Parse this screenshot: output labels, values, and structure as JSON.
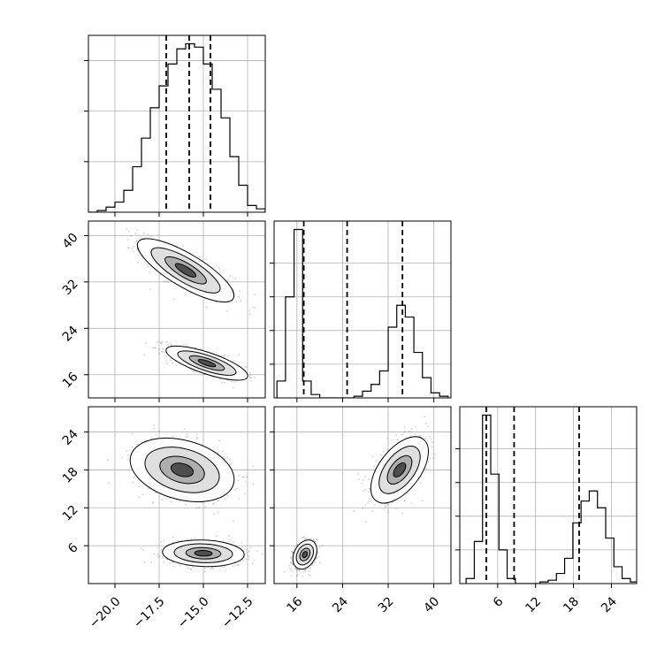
{
  "colors": {
    "background": "#ffffff",
    "frame": "#000000",
    "grid": "#b0b0b0",
    "contour": "#000000",
    "scatter": "#000000"
  },
  "chart_data": {
    "type": "corner",
    "title": "",
    "grid": true,
    "legend": "none",
    "parameters": [
      "",
      "",
      ""
    ],
    "panels": [
      {
        "id": "hist-p1",
        "type": "histogram",
        "row": 0,
        "col": 0,
        "xlim": [
          -21.5,
          -11.5
        ],
        "ylim": [
          0,
          1.05
        ],
        "xticks": [
          -20.0,
          -17.5,
          -15.0,
          -12.5
        ],
        "yticks": [
          0.3,
          0.6,
          0.9
        ],
        "bin_start": -21.5,
        "bin_width": 0.5,
        "counts": [
          0,
          0.01,
          0.03,
          0.06,
          0.13,
          0.27,
          0.44,
          0.62,
          0.75,
          0.88,
          0.97,
          1.0,
          0.98,
          0.88,
          0.73,
          0.56,
          0.33,
          0.16,
          0.04,
          0.02,
          0
        ],
        "quantiles": [
          -17.1,
          -15.8,
          -14.6
        ]
      },
      {
        "id": "scatter-p1-p2",
        "type": "2d-density",
        "row": 1,
        "col": 0,
        "xlim": [
          -21.5,
          -11.5
        ],
        "ylim": [
          12,
          42.5
        ],
        "xticks": [
          -20.0,
          -17.5,
          -15.0,
          -12.5
        ],
        "yticks": [
          16,
          24,
          32,
          40
        ],
        "ytick_labels": [
          "16",
          "24",
          "32",
          "40"
        ],
        "clusters": [
          {
            "center": [
              -16.0,
              34.0
            ],
            "spread": [
              1.3,
              2.6
            ],
            "correlation": -0.8,
            "weight": 0.5
          },
          {
            "center": [
              -14.8,
              18.0
            ],
            "spread": [
              1.1,
              1.4
            ],
            "correlation": -0.75,
            "weight": 0.5
          }
        ]
      },
      {
        "id": "hist-p2",
        "type": "histogram",
        "row": 1,
        "col": 1,
        "xlim": [
          12,
          43
        ],
        "ylim": [
          0,
          1.05
        ],
        "xticks": [
          16,
          24,
          32,
          40
        ],
        "yticks": [
          0.2,
          0.4,
          0.6,
          0.8
        ],
        "bin_start": 12.5,
        "bin_width": 1.5,
        "counts": [
          0.1,
          0.6,
          1.0,
          0.1,
          0.02,
          0,
          0,
          0,
          0,
          0.01,
          0.04,
          0.08,
          0.16,
          0.42,
          0.55,
          0.48,
          0.27,
          0.12,
          0.03,
          0.01
        ],
        "quantiles": [
          17.2,
          24.8,
          34.5
        ]
      },
      {
        "id": "scatter-p1-p3",
        "type": "2d-density",
        "row": 2,
        "col": 0,
        "xlim": [
          -21.5,
          -11.5
        ],
        "ylim": [
          0,
          28
        ],
        "xticks": [
          -20.0,
          -17.5,
          -15.0,
          -12.5
        ],
        "xtick_labels": [
          "−20.0",
          "−17.5",
          "−15.0",
          "−12.5"
        ],
        "yticks": [
          6,
          12,
          18,
          24
        ],
        "ytick_labels": [
          "6",
          "12",
          "18",
          "24"
        ],
        "clusters": [
          {
            "center": [
              -16.2,
              18.0
            ],
            "spread": [
              1.4,
              2.4
            ],
            "correlation": -0.3,
            "weight": 0.5
          },
          {
            "center": [
              -15.0,
              4.8
            ],
            "spread": [
              1.1,
              1.0
            ],
            "correlation": -0.1,
            "weight": 0.5
          }
        ]
      },
      {
        "id": "scatter-p2-p3",
        "type": "2d-density",
        "row": 2,
        "col": 1,
        "xlim": [
          12,
          43
        ],
        "ylim": [
          0,
          28
        ],
        "xticks": [
          16,
          24,
          32,
          40
        ],
        "xtick_labels": [
          "16",
          "24",
          "32",
          "40"
        ],
        "yticks": [
          6,
          12,
          18,
          24
        ],
        "clusters": [
          {
            "center": [
              34.0,
              18.0
            ],
            "spread": [
              2.4,
              2.5
            ],
            "correlation": 0.55,
            "weight": 0.5
          },
          {
            "center": [
              17.4,
              4.6
            ],
            "spread": [
              1.0,
              1.1
            ],
            "correlation": 0.3,
            "weight": 0.5
          }
        ]
      },
      {
        "id": "hist-p3",
        "type": "histogram",
        "row": 2,
        "col": 2,
        "xlim": [
          0,
          28
        ],
        "ylim": [
          0,
          1.05
        ],
        "xticks": [
          6,
          12,
          18,
          24
        ],
        "xtick_labels": [
          "6",
          "12",
          "18",
          "24"
        ],
        "yticks": [
          0.2,
          0.4,
          0.6,
          0.8
        ],
        "bin_start": 1.0,
        "bin_width": 1.3,
        "counts": [
          0.03,
          0.25,
          1.0,
          0.65,
          0.2,
          0.03,
          0,
          0,
          0,
          0.01,
          0.02,
          0.06,
          0.15,
          0.36,
          0.49,
          0.55,
          0.45,
          0.27,
          0.1,
          0.03,
          0.01
        ],
        "quantiles": [
          4.2,
          8.6,
          18.9
        ]
      }
    ]
  }
}
